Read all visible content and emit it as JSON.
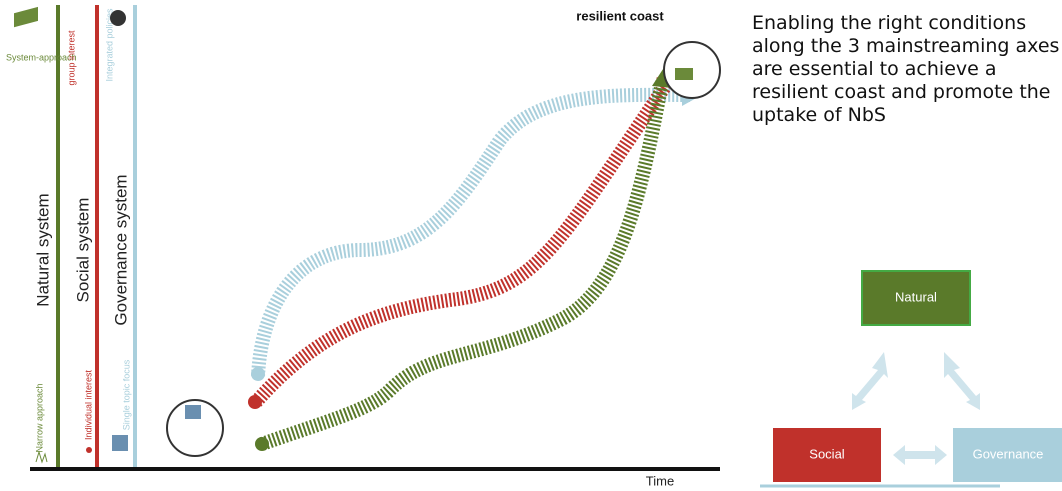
{
  "axes": [
    {
      "label": "Natural system",
      "top": "System-approach",
      "bottom": "Narrow approach"
    },
    {
      "label": "Social system",
      "top": "group interest",
      "bottom": "Individual interest"
    },
    {
      "label": "Governance system",
      "top": "Integrated policies",
      "bottom": "Single topic focus"
    }
  ],
  "goal": "resilient coast",
  "x_axis": "Time",
  "statement": "Enabling the right conditions along the 3 mainstreaming axes are essential to achieve a resilient coast and promote the uptake of NbS",
  "triangle": {
    "top": "Natural",
    "left": "Social",
    "right": "Governance"
  }
}
